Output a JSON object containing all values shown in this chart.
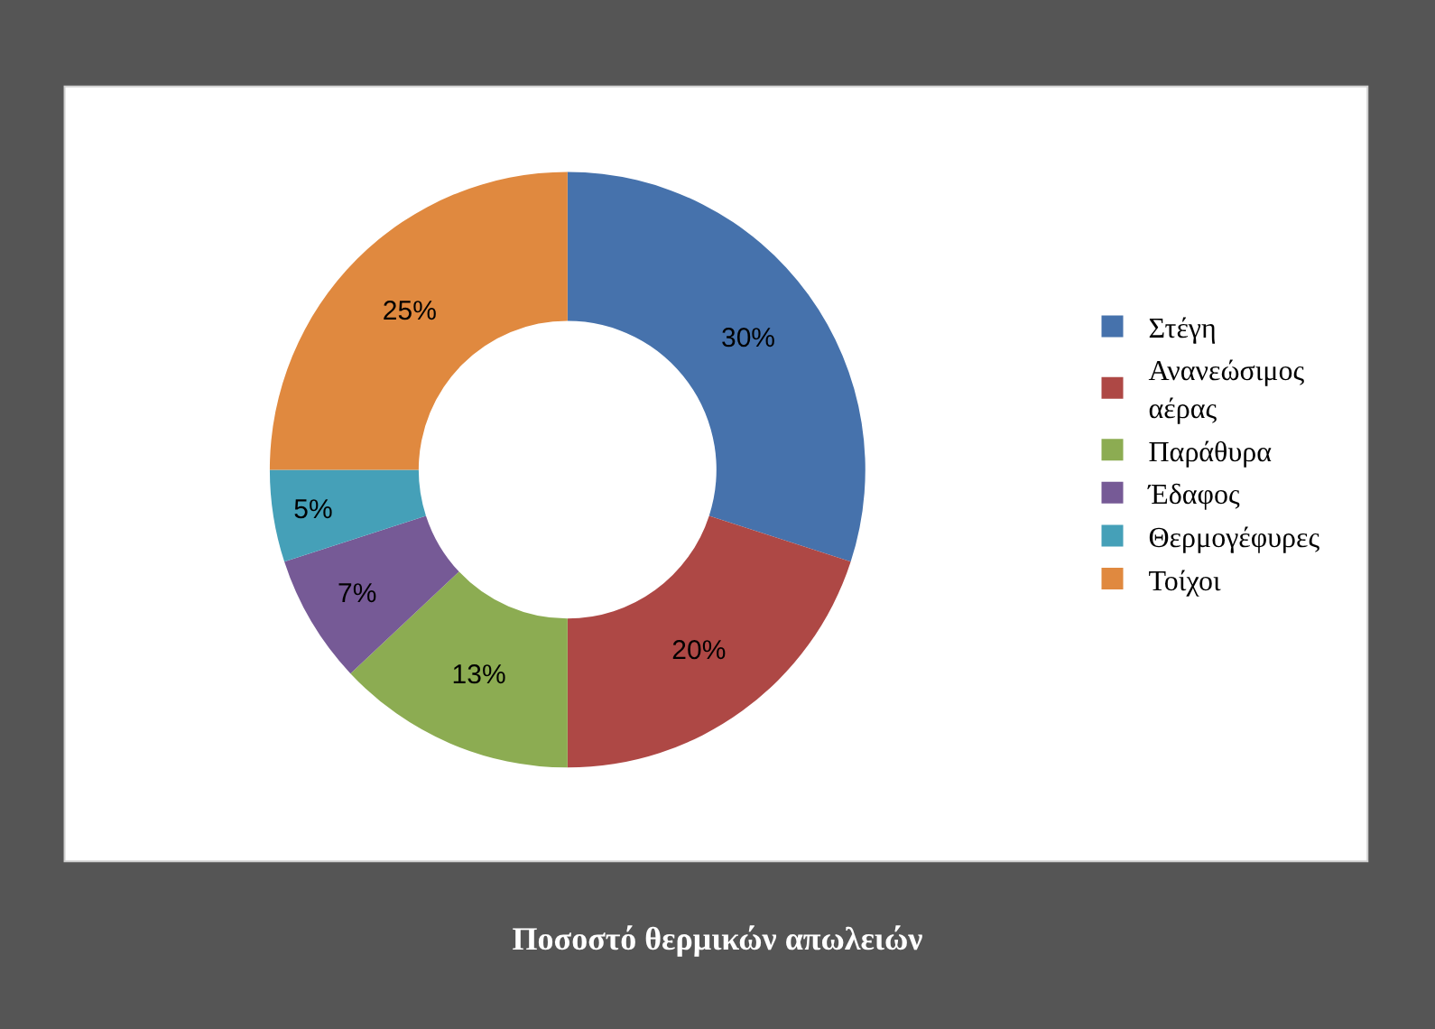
{
  "chart_data": {
    "type": "donut",
    "title": "Ποσοστό θερμικών απωλειών",
    "categories": [
      "Στέγη",
      "Ανανεώσιμος αέρας",
      "Παράθυρα",
      "Έδαφος",
      "Θερμογέφυρες",
      "Τοίχοι"
    ],
    "values": [
      30,
      20,
      13,
      7,
      5,
      25
    ],
    "value_labels": [
      "30%",
      "20%",
      "13%",
      "7%",
      "5%",
      "25%"
    ],
    "colors": [
      "#4672ac",
      "#ae4845",
      "#8cac52",
      "#765a96",
      "#45a0b8",
      "#e0893f"
    ],
    "legend": "right"
  }
}
